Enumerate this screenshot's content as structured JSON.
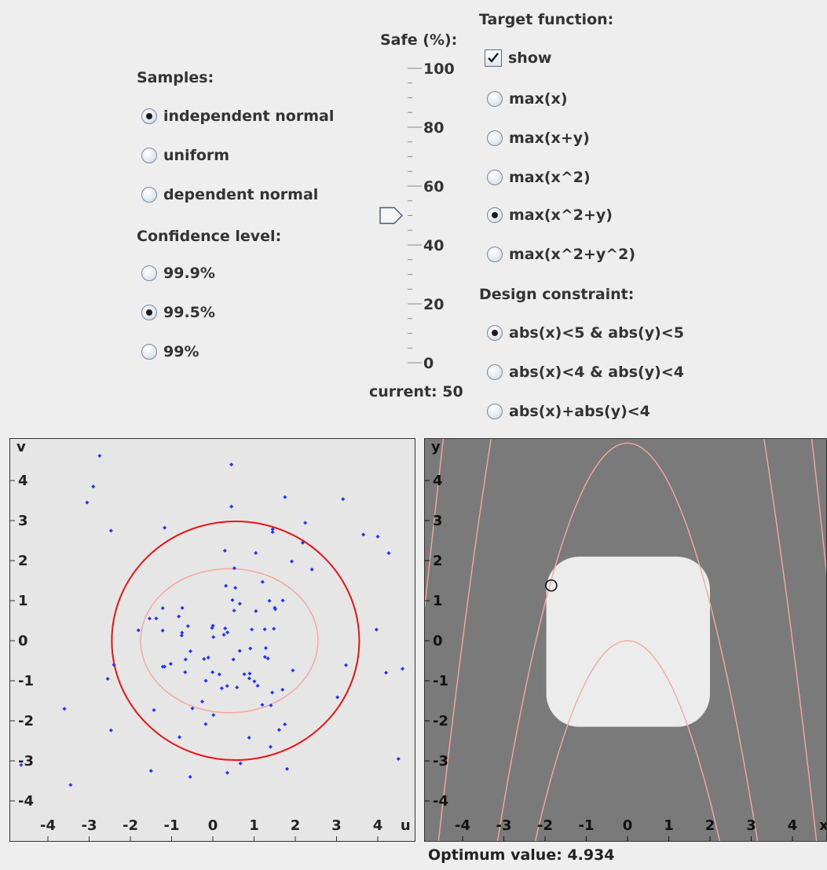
{
  "samples": {
    "title": "Samples:",
    "options": [
      {
        "label": "independent normal",
        "selected": true
      },
      {
        "label": "uniform",
        "selected": false
      },
      {
        "label": "dependent normal",
        "selected": false
      }
    ]
  },
  "confidence": {
    "title": "Confidence level:",
    "options": [
      {
        "label": "99.9%",
        "selected": false
      },
      {
        "label": "99.5%",
        "selected": true
      },
      {
        "label": "99%",
        "selected": false
      }
    ]
  },
  "safe_slider": {
    "title": "Safe (%):",
    "ticks": [
      "100",
      "80",
      "60",
      "40",
      "20",
      "0"
    ],
    "value": 50,
    "min": 0,
    "max": 100,
    "current_label": "current: 50"
  },
  "target_function": {
    "title": "Target function:",
    "show_label": "show",
    "show_checked": true,
    "options": [
      {
        "label": "max(x)",
        "selected": false
      },
      {
        "label": "max(x+y)",
        "selected": false
      },
      {
        "label": "max(x^2)",
        "selected": false
      },
      {
        "label": "max(x^2+y)",
        "selected": true
      },
      {
        "label": "max(x^2+y^2)",
        "selected": false
      }
    ]
  },
  "design_constraint": {
    "title": "Design constraint:",
    "options": [
      {
        "label": "abs(x)<5 & abs(y)<5",
        "selected": true
      },
      {
        "label": "abs(x)<4 & abs(y)<4",
        "selected": false
      },
      {
        "label": "abs(x)+abs(y)<4",
        "selected": false
      }
    ]
  },
  "left_plot": {
    "x_label": "u",
    "y_label": "v",
    "x_ticks": [
      "-4",
      "-3",
      "-2",
      "-1",
      "0",
      "1",
      "2",
      "3",
      "4"
    ],
    "y_ticks": [
      "4",
      "3",
      "2",
      "1",
      "0",
      "-1",
      "-2",
      "-3",
      "-4"
    ],
    "background": "#e6e6e6",
    "point_color": "#2233ff",
    "outer_ellipse_color": "#ee1111",
    "inner_ellipse_color": "#f5a8a0"
  },
  "right_plot": {
    "x_label": "x",
    "y_label": "y",
    "x_ticks": [
      "-4",
      "-3",
      "-2",
      "-1",
      "0",
      "1",
      "2",
      "3",
      "4"
    ],
    "y_ticks": [
      "4",
      "3",
      "2",
      "1",
      "0",
      "-1",
      "-2",
      "-3",
      "-4"
    ],
    "background": "#7a7a7a",
    "safe_region_color": "#ececec",
    "contour_color": "#f6a8a0",
    "optimum_label": "Optimum value: 4.934"
  }
}
